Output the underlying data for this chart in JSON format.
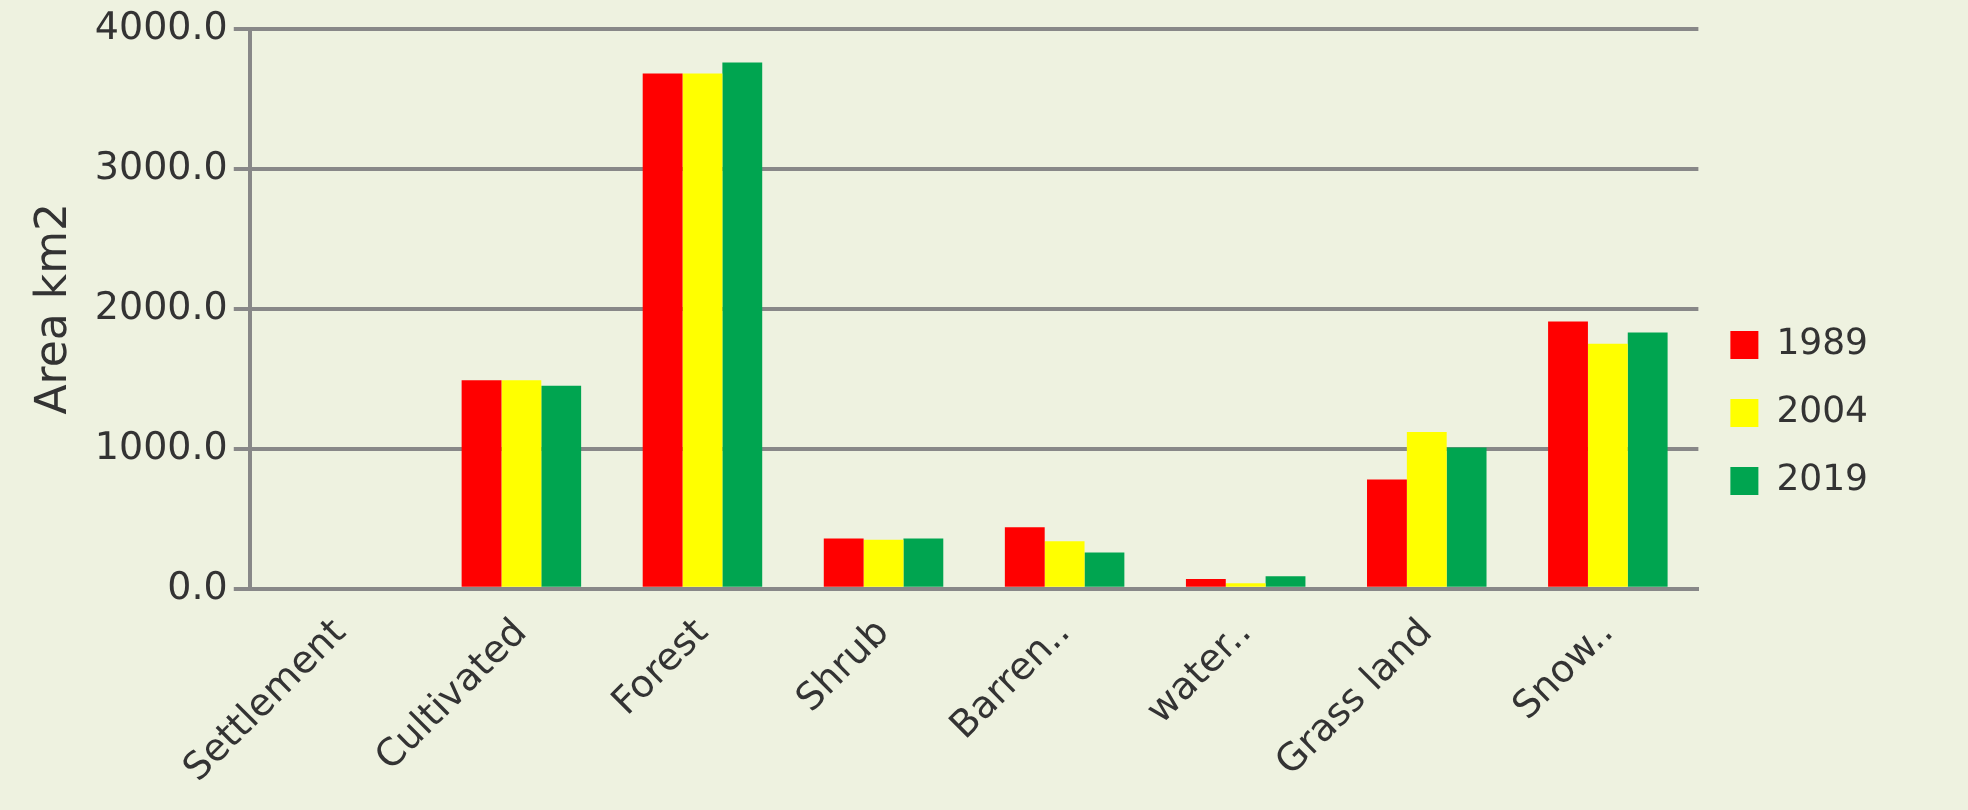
{
  "chart_data": {
    "type": "bar",
    "ylabel": "Area km2",
    "categories": [
      "Settlement",
      "Cultivated",
      "Forest",
      "Shrub",
      "Barren..",
      "water..",
      "Grass land",
      "Snow.."
    ],
    "series": [
      {
        "name": "1989",
        "color": "#ff0000",
        "values": [
          0,
          1490,
          3680,
          360,
          440,
          70,
          780,
          1910
        ]
      },
      {
        "name": "2004",
        "color": "#ffff00",
        "values": [
          0,
          1490,
          3680,
          350,
          340,
          40,
          1120,
          1750
        ]
      },
      {
        "name": "2019",
        "color": "#00a550",
        "values": [
          0,
          1450,
          3760,
          360,
          260,
          90,
          1010,
          1830
        ]
      }
    ],
    "ylim": [
      0,
      4000
    ],
    "yticks": [
      {
        "value": 0,
        "label": "0.0"
      },
      {
        "value": 1000,
        "label": "1000.0"
      },
      {
        "value": 2000,
        "label": "2000.0"
      },
      {
        "value": 3000,
        "label": "3000.0"
      },
      {
        "value": 4000,
        "label": "4000.0"
      }
    ],
    "grid": "y",
    "legend": "right"
  }
}
